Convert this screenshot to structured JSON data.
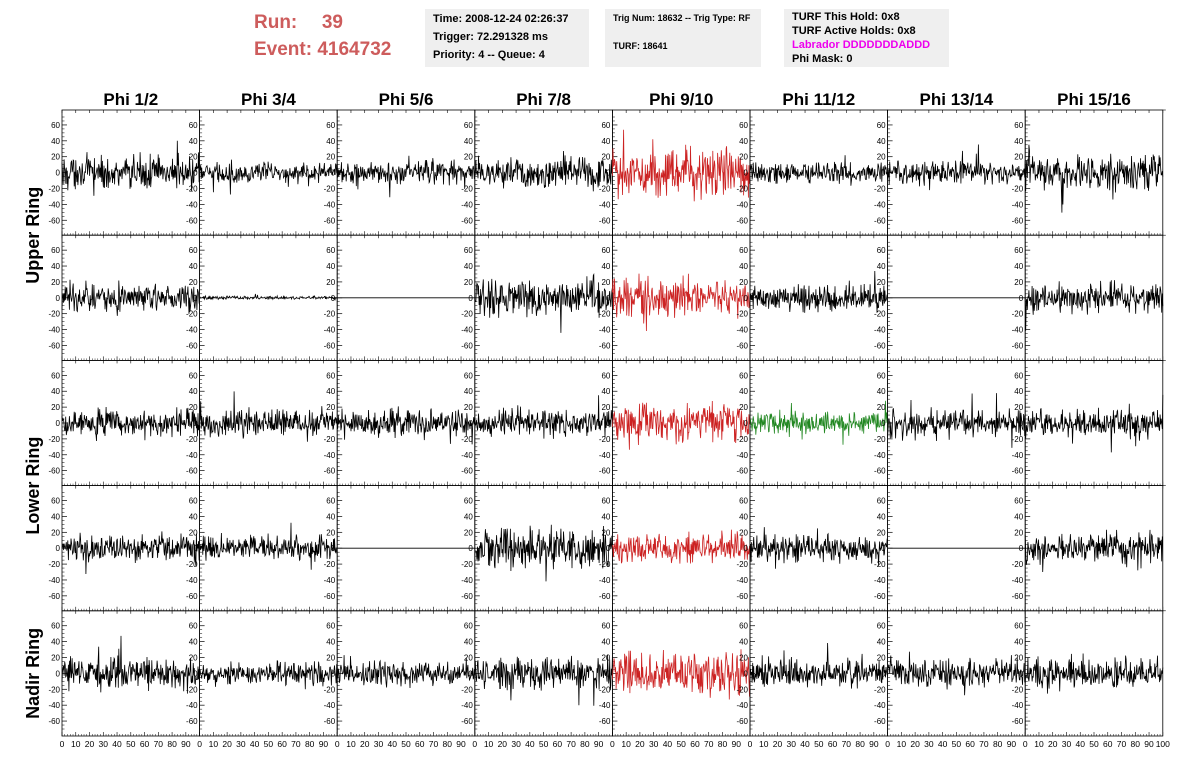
{
  "header": {
    "run_label": "Run:",
    "run_value": "39",
    "event_label": "Event:",
    "event_value": "4164732",
    "time": "Time: 2008-12-24 02:26:37",
    "trigger": "Trigger: 72.291328 ms",
    "priority": "Priority: 4 -- Queue: 4",
    "trig_num": "Trig Num: 18632 -- Trig Type: RF",
    "turf": "TURF: 18641",
    "turf_this_hold": "TURF This Hold: 0x8",
    "turf_active_holds": "TURF Active Holds: 0x8",
    "labrador": "Labrador DDDDDDDADDD",
    "phi_mask": "Phi Mask: 0"
  },
  "chart_data": {
    "type": "line",
    "columns": [
      "Phi 1/2",
      "Phi 3/4",
      "Phi 5/6",
      "Phi 7/8",
      "Phi 9/10",
      "Phi 11/12",
      "Phi 13/14",
      "Phi 15/16"
    ],
    "rows": [
      "Upper Ring",
      "Upper Ring",
      "Lower Ring",
      "Lower Ring",
      "Nadir Ring"
    ],
    "row_labels": [
      "Upper Ring",
      "Lower Ring",
      "Nadir Ring"
    ],
    "xlim": [
      0,
      100
    ],
    "x_ticks": [
      0,
      10,
      20,
      30,
      40,
      50,
      60,
      70,
      80,
      90,
      100
    ],
    "x_tick_labels": [
      "0",
      "10",
      "20",
      "30",
      "40",
      "50",
      "60",
      "70",
      "80",
      "90",
      "100"
    ],
    "ylim": [
      -70,
      70
    ],
    "y_ticks": [
      -60,
      -40,
      -20,
      0,
      20,
      40,
      60
    ],
    "y_tick_labels": [
      "-60",
      "-40",
      "-20",
      "0",
      "20",
      "40",
      "60"
    ],
    "samples_per_trace": 260,
    "colors": {
      "normal": "#000000",
      "triggered": "#cc2222",
      "l1": "#228822",
      "labrador": "#ee00ee",
      "run_text": "#cd5c5c",
      "box": "#efefef"
    },
    "panels": [
      {
        "row": 0,
        "col": 0,
        "amp": 18,
        "color": "#000000"
      },
      {
        "row": 0,
        "col": 1,
        "amp": 11,
        "color": "#000000"
      },
      {
        "row": 0,
        "col": 2,
        "amp": 13,
        "color": "#000000"
      },
      {
        "row": 0,
        "col": 3,
        "amp": 18,
        "color": "#000000"
      },
      {
        "row": 0,
        "col": 4,
        "amp": 26,
        "color": "#cc2222"
      },
      {
        "row": 0,
        "col": 5,
        "amp": 11,
        "color": "#000000"
      },
      {
        "row": 0,
        "col": 6,
        "amp": 13,
        "color": "#000000"
      },
      {
        "row": 0,
        "col": 7,
        "amp": 18,
        "color": "#000000"
      },
      {
        "row": 1,
        "col": 0,
        "amp": 15,
        "color": "#000000"
      },
      {
        "row": 1,
        "col": 1,
        "amp": 2,
        "color": "#000000"
      },
      {
        "row": 1,
        "col": 2,
        "amp": 0,
        "color": "#000000"
      },
      {
        "row": 1,
        "col": 3,
        "amp": 20,
        "color": "#000000"
      },
      {
        "row": 1,
        "col": 4,
        "amp": 20,
        "color": "#cc2222"
      },
      {
        "row": 1,
        "col": 5,
        "amp": 14,
        "color": "#000000"
      },
      {
        "row": 1,
        "col": 6,
        "amp": 0,
        "color": "#000000"
      },
      {
        "row": 1,
        "col": 7,
        "amp": 16,
        "color": "#000000"
      },
      {
        "row": 2,
        "col": 0,
        "amp": 15,
        "color": "#000000"
      },
      {
        "row": 2,
        "col": 1,
        "amp": 15,
        "color": "#000000"
      },
      {
        "row": 2,
        "col": 2,
        "amp": 14,
        "color": "#000000"
      },
      {
        "row": 2,
        "col": 3,
        "amp": 15,
        "color": "#000000"
      },
      {
        "row": 2,
        "col": 4,
        "amp": 20,
        "color": "#cc2222"
      },
      {
        "row": 2,
        "col": 5,
        "amp": 12,
        "color": "#228822"
      },
      {
        "row": 2,
        "col": 6,
        "amp": 15,
        "color": "#000000"
      },
      {
        "row": 2,
        "col": 7,
        "amp": 15,
        "color": "#000000"
      },
      {
        "row": 3,
        "col": 0,
        "amp": 15,
        "color": "#000000"
      },
      {
        "row": 3,
        "col": 1,
        "amp": 13,
        "color": "#000000"
      },
      {
        "row": 3,
        "col": 2,
        "amp": 0,
        "color": "#000000"
      },
      {
        "row": 3,
        "col": 3,
        "amp": 22,
        "color": "#000000"
      },
      {
        "row": 3,
        "col": 4,
        "amp": 16,
        "color": "#cc2222"
      },
      {
        "row": 3,
        "col": 5,
        "amp": 14,
        "color": "#000000"
      },
      {
        "row": 3,
        "col": 6,
        "amp": 0,
        "color": "#000000"
      },
      {
        "row": 3,
        "col": 7,
        "amp": 17,
        "color": "#000000"
      },
      {
        "row": 4,
        "col": 0,
        "amp": 18,
        "color": "#000000"
      },
      {
        "row": 4,
        "col": 1,
        "amp": 13,
        "color": "#000000"
      },
      {
        "row": 4,
        "col": 2,
        "amp": 14,
        "color": "#000000"
      },
      {
        "row": 4,
        "col": 3,
        "amp": 17,
        "color": "#000000"
      },
      {
        "row": 4,
        "col": 4,
        "amp": 22,
        "color": "#cc2222"
      },
      {
        "row": 4,
        "col": 5,
        "amp": 15,
        "color": "#000000"
      },
      {
        "row": 4,
        "col": 6,
        "amp": 17,
        "color": "#000000"
      },
      {
        "row": 4,
        "col": 7,
        "amp": 17,
        "color": "#000000"
      }
    ]
  }
}
